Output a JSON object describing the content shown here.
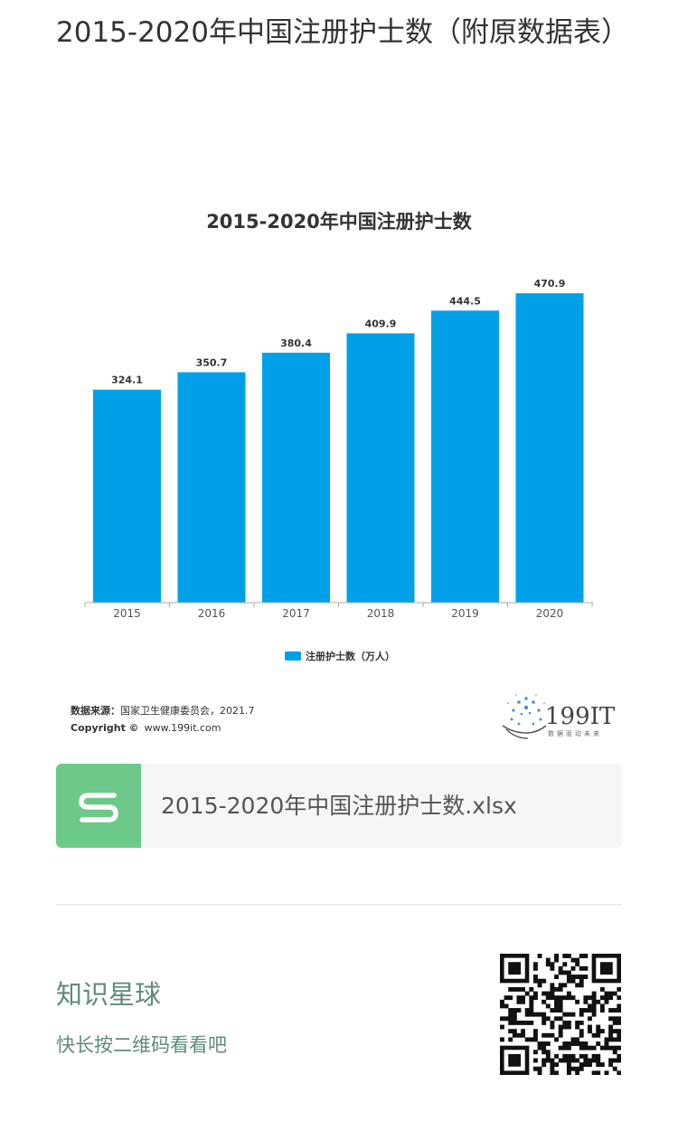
{
  "page": {
    "title": "2015-2020年中国注册护士数（附原数据表）"
  },
  "chart_data": {
    "type": "bar",
    "title": "2015-2020年中国注册护士数",
    "categories": [
      "2015",
      "2016",
      "2017",
      "2018",
      "2019",
      "2020"
    ],
    "series": [
      {
        "name": "注册护士数（万人）",
        "values": [
          324.1,
          350.7,
          380.4,
          409.9,
          444.5,
          470.9
        ]
      }
    ],
    "value_labels": [
      "324.1",
      "350.7",
      "380.4",
      "409.9",
      "444.5",
      "470.9"
    ],
    "ylim": [
      0,
      500
    ],
    "grid": false,
    "legend_position": "bottom-center",
    "bar_color": "#00a0e9"
  },
  "source": {
    "label": "数据来源：",
    "text": "国家卫生健康委员会，2021.7",
    "copyright_label": "Copyright ©",
    "copyright_url": "www.199it.com"
  },
  "logo": {
    "name": "199IT",
    "tagline": "数据驱动未来"
  },
  "attachment": {
    "filename": "2015-2020年中国注册护士数.xlsx",
    "icon": "spreadsheet-s-icon",
    "icon_color": "#6cc98a"
  },
  "footer": {
    "title": "知识星球",
    "subtitle": "快长按二维码看看吧",
    "qr_icon": "qr-code-icon"
  }
}
